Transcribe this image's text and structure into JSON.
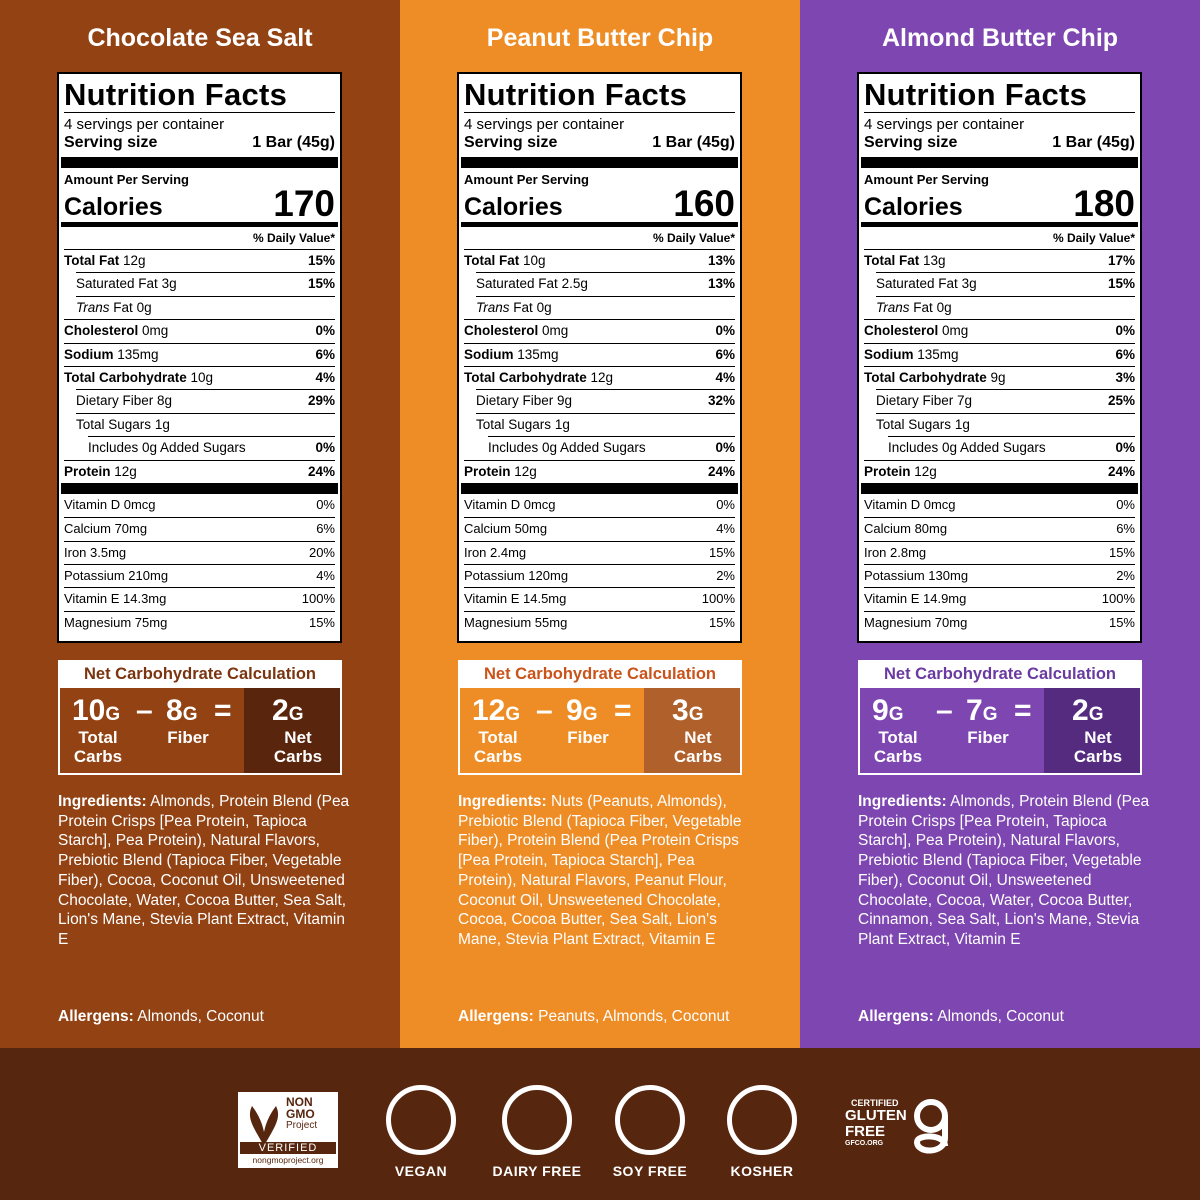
{
  "labels": {
    "nutrition_facts": "Nutrition Facts",
    "serving_size": "Serving size",
    "amount_per_serving": "Amount Per Serving",
    "calories": "Calories",
    "daily_value": "% Daily Value*",
    "net_carb_title": "Net Carbohydrate Calculation",
    "unit": "G",
    "minus": "–",
    "equals": "=",
    "total_carbs": "Total Carbs",
    "fiber": "Fiber",
    "net_carbs": "Net Carbs",
    "ingredients": "Ingredients:",
    "allergens": "Allergens:"
  },
  "products": [
    {
      "name": "Chocolate Sea Salt",
      "color": "#924213",
      "accent": "#7a3510",
      "net_color": "#5a250d",
      "servings": "4 servings per container",
      "serving_size": "1 Bar (45g)",
      "calories": 170,
      "rows": [
        {
          "style": "main",
          "label": "Total Fat",
          "amount": "12g",
          "dv": "15%"
        },
        {
          "style": "sub",
          "label": "Saturated Fat",
          "amount": "3g",
          "dv": "15%"
        },
        {
          "style": "sub",
          "italic": "Trans",
          "label": "Fat",
          "amount": "0g"
        },
        {
          "style": "main",
          "label": "Cholesterol",
          "amount": "0mg",
          "dv": "0%"
        },
        {
          "style": "main",
          "label": "Sodium",
          "amount": "135mg",
          "dv": "6%"
        },
        {
          "style": "main",
          "label": "Total Carbohydrate",
          "amount": "10g",
          "dv": "4%"
        },
        {
          "style": "sub",
          "label": "Dietary Fiber",
          "amount": "8g",
          "dv": "29%"
        },
        {
          "style": "sub",
          "label": "Total Sugars",
          "amount": "1g"
        },
        {
          "style": "subsub",
          "label": "Includes 0g Added Sugars",
          "dv": "0%"
        },
        {
          "style": "main",
          "label": "Protein",
          "amount": "12g",
          "dv": "24%"
        }
      ],
      "vitamins": [
        {
          "label": "Vitamin D 0mcg",
          "dv": "0%"
        },
        {
          "label": "Calcium 70mg",
          "dv": "6%"
        },
        {
          "label": "Iron 3.5mg",
          "dv": "20%"
        },
        {
          "label": "Potassium 210mg",
          "dv": "4%"
        },
        {
          "label": "Vitamin E 14.3mg",
          "dv": "100%"
        },
        {
          "label": "Magnesium 75mg",
          "dv": "15%"
        }
      ],
      "net_carb": {
        "total": 10,
        "fiber": 8,
        "net": 2
      },
      "ingredients": "Almonds, Protein Blend (Pea Protein Crisps [Pea Protein, Tapioca Starch], Pea Protein), Natural Flavors, Prebiotic Blend (Tapioca Fiber, Vegetable Fiber), Cocoa, Coconut Oil, Unsweetened Chocolate, Water, Cocoa Butter, Sea Salt, Lion's Mane, Stevia Plant Extract, Vitamin E",
      "allergens": "Almonds, Coconut"
    },
    {
      "name": "Peanut Butter Chip",
      "color": "#ee8c25",
      "accent": "#c9531a",
      "net_color": "#b0602a",
      "servings": "4 servings per container",
      "serving_size": "1 Bar (45g)",
      "calories": 160,
      "rows": [
        {
          "style": "main",
          "label": "Total Fat",
          "amount": "10g",
          "dv": "13%"
        },
        {
          "style": "sub",
          "label": "Saturated Fat",
          "amount": "2.5g",
          "dv": "13%"
        },
        {
          "style": "sub",
          "italic": "Trans",
          "label": "Fat",
          "amount": "0g"
        },
        {
          "style": "main",
          "label": "Cholesterol",
          "amount": "0mg",
          "dv": "0%"
        },
        {
          "style": "main",
          "label": "Sodium",
          "amount": "135mg",
          "dv": "6%"
        },
        {
          "style": "main",
          "label": "Total Carbohydrate",
          "amount": "12g",
          "dv": "4%"
        },
        {
          "style": "sub",
          "label": "Dietary Fiber",
          "amount": "9g",
          "dv": "32%"
        },
        {
          "style": "sub",
          "label": "Total Sugars",
          "amount": "1g"
        },
        {
          "style": "subsub",
          "label": "Includes 0g Added Sugars",
          "dv": "0%"
        },
        {
          "style": "main",
          "label": "Protein",
          "amount": "12g",
          "dv": "24%"
        }
      ],
      "vitamins": [
        {
          "label": "Vitamin D 0mcg",
          "dv": "0%"
        },
        {
          "label": "Calcium 50mg",
          "dv": "4%"
        },
        {
          "label": "Iron 2.4mg",
          "dv": "15%"
        },
        {
          "label": "Potassium 120mg",
          "dv": "2%"
        },
        {
          "label": "Vitamin E 14.5mg",
          "dv": "100%"
        },
        {
          "label": "Magnesium 55mg",
          "dv": "15%"
        }
      ],
      "net_carb": {
        "total": 12,
        "fiber": 9,
        "net": 3
      },
      "ingredients": "Nuts (Peanuts, Almonds), Prebiotic Blend (Tapioca Fiber, Vegetable Fiber), Protein Blend (Pea Protein Crisps [Pea Protein, Tapioca Starch], Pea Protein), Natural Flavors, Peanut Flour, Coconut Oil, Unsweetened Chocolate, Cocoa, Cocoa Butter, Sea Salt, Lion's Mane, Stevia Plant Extract, Vitamin E",
      "allergens": "Peanuts, Almonds, Coconut"
    },
    {
      "name": "Almond Butter Chip",
      "color": "#7d46b0",
      "accent": "#6a3aa0",
      "net_color": "#552b80",
      "servings": "4 servings per container",
      "serving_size": "1 Bar (45g)",
      "calories": 180,
      "rows": [
        {
          "style": "main",
          "label": "Total Fat",
          "amount": "13g",
          "dv": "17%"
        },
        {
          "style": "sub",
          "label": "Saturated Fat",
          "amount": "3g",
          "dv": "15%"
        },
        {
          "style": "sub",
          "italic": "Trans",
          "label": "Fat",
          "amount": "0g"
        },
        {
          "style": "main",
          "label": "Cholesterol",
          "amount": "0mg",
          "dv": "0%"
        },
        {
          "style": "main",
          "label": "Sodium",
          "amount": "135mg",
          "dv": "6%"
        },
        {
          "style": "main",
          "label": "Total Carbohydrate",
          "amount": "9g",
          "dv": "3%"
        },
        {
          "style": "sub",
          "label": "Dietary Fiber",
          "amount": "7g",
          "dv": "25%"
        },
        {
          "style": "sub",
          "label": "Total Sugars",
          "amount": "1g"
        },
        {
          "style": "subsub",
          "label": "Includes 0g Added Sugars",
          "dv": "0%"
        },
        {
          "style": "main",
          "label": "Protein",
          "amount": "12g",
          "dv": "24%"
        }
      ],
      "vitamins": [
        {
          "label": "Vitamin D 0mcg",
          "dv": "0%"
        },
        {
          "label": "Calcium 80mg",
          "dv": "6%"
        },
        {
          "label": "Iron 2.8mg",
          "dv": "15%"
        },
        {
          "label": "Potassium 130mg",
          "dv": "2%"
        },
        {
          "label": "Vitamin E 14.9mg",
          "dv": "100%"
        },
        {
          "label": "Magnesium 70mg",
          "dv": "15%"
        }
      ],
      "net_carb": {
        "total": 9,
        "fiber": 7,
        "net": 2
      },
      "ingredients": "Almonds, Protein Blend (Pea Protein Crisps [Pea Protein, Tapioca Starch], Pea Protein), Natural Flavors, Prebiotic Blend (Tapioca Fiber, Vegetable Fiber), Coconut Oil, Unsweetened Chocolate, Cocoa, Water, Cocoa Butter, Cinnamon, Sea Salt, Lion's Mane, Stevia Plant Extract, Vitamin E",
      "allergens": "Almonds, Coconut"
    }
  ],
  "certifications": {
    "non_gmo": {
      "line1": "NON",
      "line2": "GMO",
      "line3": "Project",
      "verified": "VERIFIED",
      "url": "nongmoproject.org"
    },
    "badges": [
      "VEGAN",
      "DAIRY FREE",
      "SOY FREE",
      "KOSHER"
    ],
    "gluten_free": {
      "certified": "CERTIFIED",
      "line1": "GLUTEN",
      "line2": "FREE",
      "url": "GFCO.ORG"
    }
  }
}
